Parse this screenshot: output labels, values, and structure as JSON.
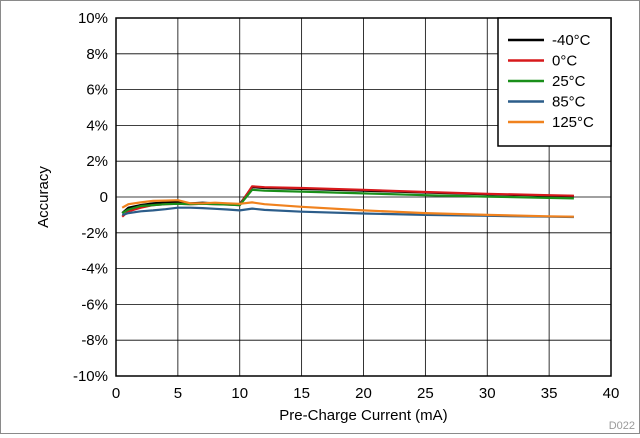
{
  "chart_data": {
    "type": "line",
    "xlabel": "Pre-Charge Current (mA)",
    "ylabel": "Accuracy",
    "xlim": [
      0,
      40
    ],
    "ylim": [
      -10,
      10
    ],
    "xticks": [
      "0",
      "5",
      "10",
      "15",
      "20",
      "25",
      "30",
      "35",
      "40"
    ],
    "yticks": [
      "-10%",
      "-8%",
      "-6%",
      "-4%",
      "-2%",
      "0",
      "2%",
      "4%",
      "6%",
      "8%",
      "10%"
    ],
    "grid": true,
    "legend": "top-right",
    "footnote": "D022",
    "series": [
      {
        "name": "-40°C",
        "color": "#000000",
        "x": [
          0.5,
          1,
          2,
          3,
          4,
          5,
          6,
          7,
          8,
          9,
          10,
          11,
          12,
          15,
          20,
          25,
          30,
          35,
          37
        ],
        "y": [
          -0.9,
          -0.6,
          -0.45,
          -0.35,
          -0.3,
          -0.28,
          -0.35,
          -0.32,
          -0.35,
          -0.38,
          -0.4,
          0.55,
          0.5,
          0.45,
          0.35,
          0.25,
          0.15,
          0.08,
          0.05
        ]
      },
      {
        "name": "0°C",
        "color": "#d7191c",
        "x": [
          0.5,
          1,
          2,
          3,
          4,
          5,
          6,
          7,
          8,
          9,
          10,
          11,
          12,
          15,
          20,
          25,
          30,
          35,
          37
        ],
        "y": [
          -1.1,
          -0.8,
          -0.6,
          -0.45,
          -0.4,
          -0.38,
          -0.4,
          -0.38,
          -0.4,
          -0.42,
          -0.45,
          0.6,
          0.55,
          0.5,
          0.4,
          0.28,
          0.18,
          0.1,
          0.07
        ]
      },
      {
        "name": "25°C",
        "color": "#1a8f1a",
        "x": [
          0.5,
          1,
          2,
          3,
          4,
          5,
          6,
          7,
          8,
          9,
          10,
          11,
          12,
          15,
          20,
          25,
          30,
          35,
          37
        ],
        "y": [
          -0.9,
          -0.7,
          -0.5,
          -0.45,
          -0.4,
          -0.38,
          -0.4,
          -0.38,
          -0.4,
          -0.42,
          -0.45,
          0.4,
          0.35,
          0.3,
          0.2,
          0.1,
          0.02,
          -0.05,
          -0.08
        ]
      },
      {
        "name": "85°C",
        "color": "#2c5d8a",
        "x": [
          0.5,
          1,
          2,
          3,
          4,
          5,
          6,
          7,
          8,
          9,
          10,
          11,
          12,
          15,
          20,
          25,
          30,
          35,
          37
        ],
        "y": [
          -1.0,
          -0.9,
          -0.8,
          -0.75,
          -0.68,
          -0.6,
          -0.6,
          -0.62,
          -0.66,
          -0.7,
          -0.75,
          -0.65,
          -0.72,
          -0.82,
          -0.92,
          -1.0,
          -1.05,
          -1.1,
          -1.12
        ]
      },
      {
        "name": "125°C",
        "color": "#f0821e",
        "x": [
          0.5,
          1,
          2,
          3,
          4,
          5,
          6,
          7,
          8,
          9,
          10,
          11,
          12,
          15,
          20,
          25,
          30,
          35,
          37
        ],
        "y": [
          -0.6,
          -0.4,
          -0.3,
          -0.22,
          -0.2,
          -0.18,
          -0.35,
          -0.35,
          -0.32,
          -0.35,
          -0.38,
          -0.3,
          -0.4,
          -0.55,
          -0.75,
          -0.9,
          -1.0,
          -1.08,
          -1.1
        ]
      }
    ]
  }
}
